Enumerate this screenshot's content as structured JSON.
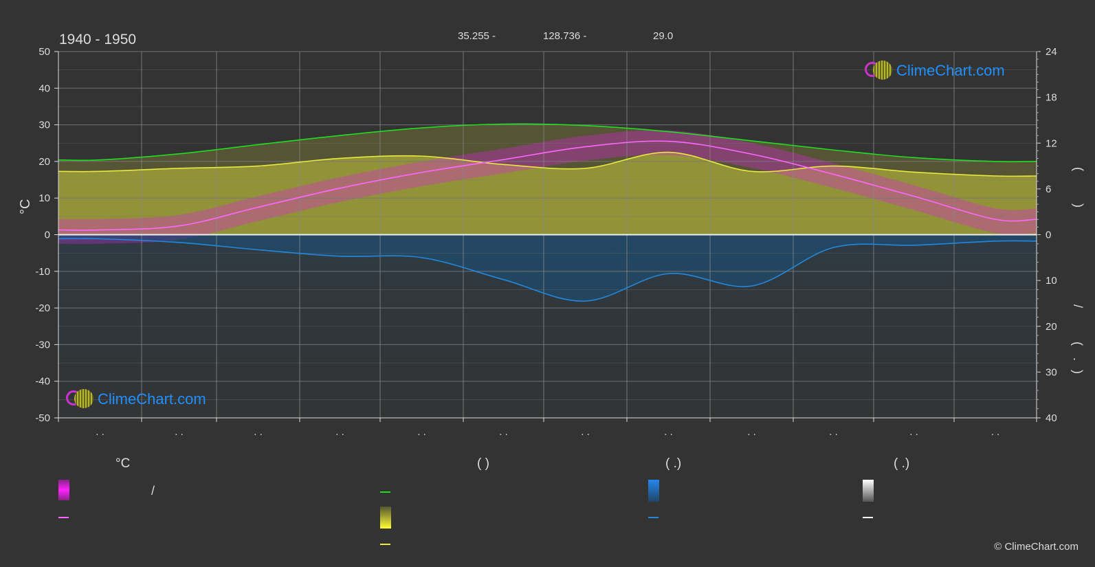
{
  "header": {
    "period": "1940 - 1950",
    "latitude": "35.255 -",
    "longitude": "128.736 -",
    "elevation": "29.0"
  },
  "axis_left_unit": "°C",
  "axis_right_top": "( )",
  "axis_right_bottom": "/ ( . )",
  "logo_text": "ClimeChart.com",
  "copyright": "© ClimeChart.com",
  "x_tick_text": ". .",
  "legend": {
    "col1_header": "°C",
    "col1_row1": "/",
    "col2_header": "(          )",
    "col3_header": "(    .)",
    "col4_header": "(    .)"
  },
  "colors": {
    "background": "#333333",
    "daylight": "#22dd22",
    "sunshine": "#e8e840",
    "temperature": "#ff66ff",
    "temp_range": "#dd22dd",
    "precipitation": "#2288dd",
    "snow": "#ffffff",
    "grid": "#666666"
  },
  "chart_data": {
    "type": "line",
    "title": "1940 - 1950",
    "ylabel": "°C",
    "ylim": [
      -50,
      50
    ],
    "y2lim_top": [
      0,
      24
    ],
    "y2lim_bottom": [
      0,
      40
    ],
    "y_ticks_left": [
      50,
      40,
      30,
      20,
      10,
      0,
      -10,
      -20,
      -30,
      -40,
      -50
    ],
    "y_ticks_right_top": [
      24,
      18,
      12,
      6,
      0
    ],
    "y_ticks_right_bottom": [
      10,
      20,
      30,
      40
    ],
    "months": 12,
    "grid": true,
    "series": [
      {
        "key": "daylight",
        "values": [
          9.8,
          10.6,
          11.8,
          13.0,
          14.0,
          14.5,
          14.3,
          13.5,
          12.3,
          11.1,
          10.1,
          9.6
        ]
      },
      {
        "key": "sunshine",
        "values": [
          8.3,
          8.7,
          9.0,
          10.0,
          10.3,
          9.2,
          8.7,
          10.8,
          8.3,
          9.0,
          8.2,
          7.7
        ]
      },
      {
        "key": "temperature",
        "values": [
          1.3,
          2.4,
          7.5,
          12.7,
          17.0,
          20.5,
          24.0,
          25.5,
          22.0,
          16.5,
          10.5,
          4.2
        ]
      },
      {
        "key": "precipitation_mm_day",
        "values": [
          0.9,
          1.7,
          3.3,
          4.7,
          5.0,
          9.8,
          14.5,
          8.5,
          11.2,
          2.8,
          2.3,
          1.4
        ]
      }
    ]
  }
}
